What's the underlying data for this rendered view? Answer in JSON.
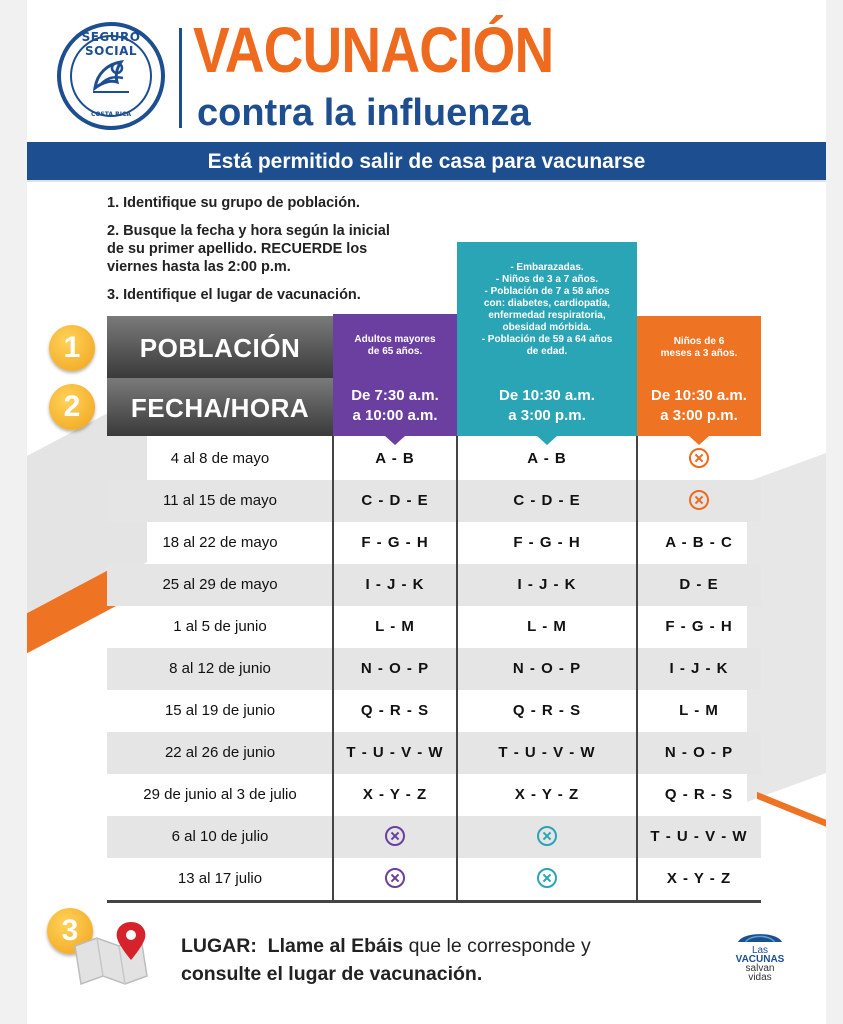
{
  "header": {
    "logo_top": "SEGURO SOCIAL",
    "logo_bottom": "COSTA RICA",
    "title": "VACUNACIÓN",
    "subtitle": "contra la influenza"
  },
  "banner": "Está permitido salir de casa para vacunarse",
  "instructions": [
    "1. Identifique su grupo de población.",
    "2. Busque la fecha y hora según la inicial",
    "de su primer apellido. RECUERDE los",
    "viernes hasta las 2:00 p.m.",
    "3. Identifique el lugar de vacunación."
  ],
  "steps": {
    "one": "1",
    "two": "2",
    "three": "3"
  },
  "row_labels": {
    "poblacion": "POBLACIÓN",
    "fecha_hora": "FECHA/HORA"
  },
  "groups": [
    {
      "lines": [
        "Adultos mayores",
        "de 65 años."
      ],
      "time": [
        "De 7:30 a.m.",
        "a 10:00 a.m."
      ],
      "color": "#6b3fa0"
    },
    {
      "lines": [
        "- Embarazadas.",
        "- Niños de 3 a 7 años.",
        "- Población de 7 a 58 años",
        "con: diabetes, cardiopatía,",
        "enfermedad respiratoria,",
        "obesidad mórbida.",
        "- Población de 59 a 64 años",
        "de edad."
      ],
      "time": [
        "De 10:30 a.m.",
        "a 3:00 p.m."
      ],
      "color": "#2aa5b5"
    },
    {
      "lines": [
        "Niños de 6",
        "meses a 3 años."
      ],
      "time": [
        "De 10:30 a.m.",
        "a 3:00 p.m."
      ],
      "color": "#ee7322"
    }
  ],
  "rows": [
    {
      "date": "4 al 8 de mayo",
      "g1": "A - B",
      "g2": "A - B",
      "g3": "x"
    },
    {
      "date": "11 al 15 de mayo",
      "g1": "C - D - E",
      "g2": "C - D - E",
      "g3": "x"
    },
    {
      "date": "18 al 22 de mayo",
      "g1": "F - G - H",
      "g2": "F - G - H",
      "g3": "A - B - C"
    },
    {
      "date": "25 al 29 de mayo",
      "g1": "I - J - K",
      "g2": "I - J - K",
      "g3": "D - E"
    },
    {
      "date": "1 al 5 de junio",
      "g1": "L - M",
      "g2": "L - M",
      "g3": "F - G - H"
    },
    {
      "date": "8 al 12 de junio",
      "g1": "N - O - P",
      "g2": "N - O - P",
      "g3": "I - J - K"
    },
    {
      "date": "15 al 19 de junio",
      "g1": "Q - R - S",
      "g2": "Q - R - S",
      "g3": "L - M"
    },
    {
      "date": "22 al 26 de junio",
      "g1": "T - U - V - W",
      "g2": "T - U - V - W",
      "g3": "N - O - P"
    },
    {
      "date": "29 de junio al 3 de julio",
      "g1": "X - Y - Z",
      "g2": "X - Y - Z",
      "g3": "Q - R - S"
    },
    {
      "date": "6 al 10 de julio",
      "g1": "x",
      "g2": "x",
      "g3": "T - U - V - W"
    },
    {
      "date": "13 al 17 julio",
      "g1": "x",
      "g2": "x",
      "g3": "X - Y - Z"
    }
  ],
  "footer": {
    "lugar_label": "LUGAR:",
    "lugar_bold": "Llame al Ebáis",
    "lugar_rest": " que le corresponde y",
    "lugar_line2": "consulte el lugar de vacunación.",
    "vac_logo": [
      "Las",
      "VACUNAS",
      "salvan",
      "vidas"
    ]
  },
  "colors": {
    "orange": "#ee6a1e",
    "navy": "#1d4e8f",
    "purple": "#6b3fa0",
    "teal": "#2aa5b5",
    "badge": "#f0a21b"
  }
}
